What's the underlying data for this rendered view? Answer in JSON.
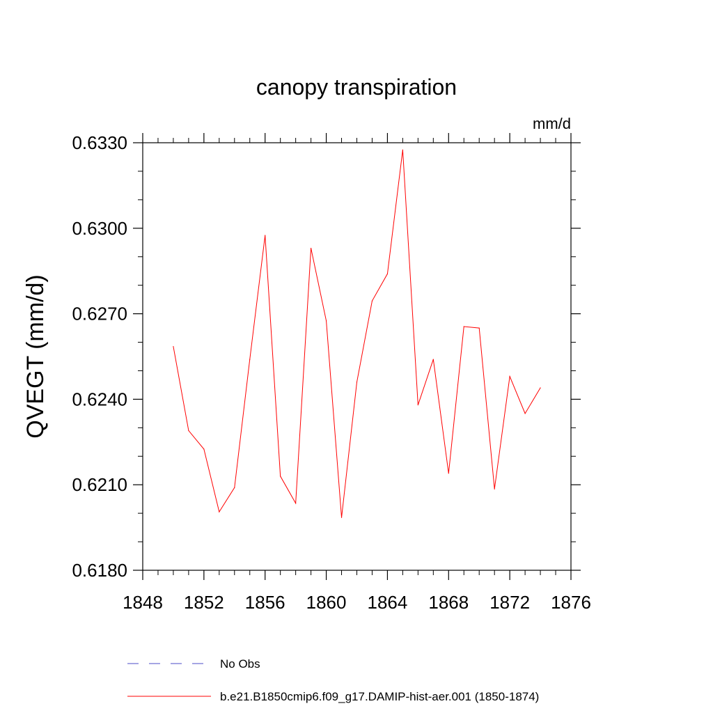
{
  "chart_data": {
    "type": "line",
    "title": "canopy transpiration",
    "units_label": "mm/d",
    "ylabel": "QVEGT  (mm/d)",
    "xlabel": "",
    "xlim": [
      1848,
      1876
    ],
    "ylim": [
      0.618,
      0.633
    ],
    "x_ticks": [
      1848,
      1852,
      1856,
      1860,
      1864,
      1868,
      1872,
      1876
    ],
    "x_tick_labels": [
      "1848",
      "1852",
      "1856",
      "1860",
      "1864",
      "1868",
      "1872",
      "1876"
    ],
    "y_ticks": [
      0.618,
      0.621,
      0.624,
      0.627,
      0.63,
      0.633
    ],
    "y_tick_labels": [
      "0.6180",
      "0.6210",
      "0.6240",
      "0.6270",
      "0.6300",
      "0.6330"
    ],
    "grid": false,
    "legend_position": "bottom",
    "series": [
      {
        "name": "No Obs",
        "color": "#4b4bc8",
        "dash": true,
        "x": [],
        "values": []
      },
      {
        "name": "b.e21.B1850cmip6.f09_g17.DAMIP-hist-aer.001 (1850-1874)",
        "color": "#ff0000",
        "dash": false,
        "x": [
          1850,
          1851,
          1852,
          1853,
          1854,
          1855,
          1856,
          1857,
          1858,
          1859,
          1860,
          1861,
          1862,
          1863,
          1864,
          1865,
          1866,
          1867,
          1868,
          1869,
          1870,
          1871,
          1872,
          1873,
          1874
        ],
        "values": [
          0.62585,
          0.6229,
          0.62225,
          0.62005,
          0.6209,
          0.6254,
          0.62975,
          0.6213,
          0.62035,
          0.6293,
          0.62675,
          0.61985,
          0.6246,
          0.62745,
          0.6284,
          0.63275,
          0.6238,
          0.6254,
          0.6214,
          0.62655,
          0.6265,
          0.62085,
          0.6248,
          0.6235,
          0.6244
        ]
      }
    ]
  }
}
